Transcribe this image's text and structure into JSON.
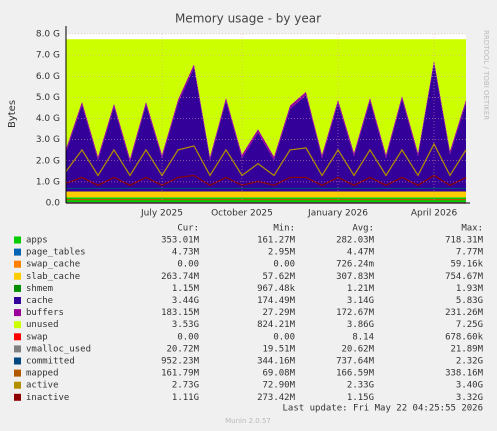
{
  "chart_data": {
    "type": "area",
    "title": "Memory usage - by year",
    "y_label": "Bytes",
    "side_text": "RRDTOOL / TOBI OETIKER",
    "categories": [
      null,
      null,
      null,
      null,
      null,
      null,
      "July 2025",
      null,
      null,
      null,
      null,
      "October 2025",
      null,
      null,
      null,
      null,
      null,
      "January 2026",
      null,
      null,
      null,
      null,
      null,
      "April 2026",
      null,
      null
    ],
    "ylim": [
      0,
      8589934592
    ],
    "yticks": [
      {
        "value": 0,
        "label": "0.0"
      },
      {
        "value": 1073741824,
        "label": "1.0 G"
      },
      {
        "value": 2147483648,
        "label": "2.0 G"
      },
      {
        "value": 3221225472,
        "label": "3.0 G"
      },
      {
        "value": 4294967296,
        "label": "4.0 G"
      },
      {
        "value": 5368709120,
        "label": "5.0 G"
      },
      {
        "value": 6442450944,
        "label": "6.0 G"
      },
      {
        "value": 7516192768,
        "label": "7.0 G"
      },
      {
        "value": 8589934592,
        "label": "8.0 G"
      }
    ],
    "grid": true,
    "series": [
      {
        "name": "apps",
        "color": "#00cc00",
        "stack": true,
        "values": [
          280000000.0,
          280000000.0,
          280000000.0,
          280000000.0,
          280000000.0,
          280000000.0,
          280000000.0,
          280000000.0,
          280000000.0,
          280000000.0,
          280000000.0,
          280000000.0,
          280000000.0,
          280000000.0,
          280000000.0,
          280000000.0,
          280000000.0,
          280000000.0,
          280000000.0,
          280000000.0,
          280000000.0,
          280000000.0,
          280000000.0,
          280000000.0,
          280000000.0,
          280000000.0
        ]
      },
      {
        "name": "page_tables",
        "color": "#0066b3",
        "stack": true,
        "values": [
          4500000.0,
          4500000.0,
          4500000.0,
          4500000.0,
          4500000.0,
          4500000.0,
          4500000.0,
          4500000.0,
          4500000.0,
          4500000.0,
          4500000.0,
          4500000.0,
          4500000.0,
          4500000.0,
          4500000.0,
          4500000.0,
          4500000.0,
          4500000.0,
          4500000.0,
          4500000.0,
          4500000.0,
          4500000.0,
          4500000.0,
          4500000.0,
          4500000.0,
          4500000.0
        ]
      },
      {
        "name": "swap_cache",
        "color": "#ff8000",
        "stack": true,
        "values": [
          0,
          0,
          0,
          0,
          0,
          0,
          0,
          0,
          0,
          0,
          0,
          0,
          0,
          0,
          0,
          0,
          0,
          0,
          0,
          0,
          0,
          0,
          0,
          0,
          0,
          0
        ]
      },
      {
        "name": "slab_cache",
        "color": "#ffcc00",
        "stack": true,
        "values": [
          300000000.0,
          300000000.0,
          300000000.0,
          300000000.0,
          300000000.0,
          300000000.0,
          300000000.0,
          300000000.0,
          300000000.0,
          300000000.0,
          300000000.0,
          300000000.0,
          300000000.0,
          300000000.0,
          300000000.0,
          300000000.0,
          300000000.0,
          300000000.0,
          300000000.0,
          300000000.0,
          300000000.0,
          300000000.0,
          300000000.0,
          300000000.0,
          300000000.0,
          300000000.0
        ]
      },
      {
        "name": "shmem",
        "color": "#008f00",
        "stack": true,
        "values": [
          1200000.0,
          1200000.0,
          1200000.0,
          1200000.0,
          1200000.0,
          1200000.0,
          1200000.0,
          1200000.0,
          1200000.0,
          1200000.0,
          1200000.0,
          1200000.0,
          1200000.0,
          1200000.0,
          1200000.0,
          1200000.0,
          1200000.0,
          1200000.0,
          1200000.0,
          1200000.0,
          1200000.0,
          1200000.0,
          1200000.0,
          1200000.0,
          1200000.0,
          1200000.0
        ]
      },
      {
        "name": "cache",
        "color": "#330099",
        "stack": true,
        "values": [
          2000000000.0,
          4400000000.0,
          1600000000.0,
          4300000000.0,
          1500000000.0,
          4400000000.0,
          1700000000.0,
          4500000000.0,
          6300000000.0,
          1600000000.0,
          4600000000.0,
          1700000000.0,
          3000000000.0,
          1600000000.0,
          4200000000.0,
          4900000000.0,
          1700000000.0,
          4500000000.0,
          1800000000.0,
          4600000000.0,
          1700000000.0,
          4700000000.0,
          1800000000.0,
          6500000000.0,
          1900000000.0,
          4500000000.0
        ]
      },
      {
        "name": "buffers",
        "color": "#990099",
        "stack": true,
        "values": [
          170000000.0,
          170000000.0,
          170000000.0,
          170000000.0,
          170000000.0,
          170000000.0,
          170000000.0,
          170000000.0,
          170000000.0,
          170000000.0,
          170000000.0,
          170000000.0,
          170000000.0,
          170000000.0,
          170000000.0,
          170000000.0,
          170000000.0,
          170000000.0,
          170000000.0,
          170000000.0,
          170000000.0,
          170000000.0,
          170000000.0,
          170000000.0,
          170000000.0,
          170000000.0
        ]
      },
      {
        "name": "unused",
        "color": "#ccff00",
        "stack": true,
        "values": [
          5570000000.0,
          3170000000.0,
          5970000000.0,
          3270000000.0,
          6070000000.0,
          3170000000.0,
          5870000000.0,
          3070000000.0,
          1270000000.0,
          5970000000.0,
          2970000000.0,
          5870000000.0,
          4570000000.0,
          5970000000.0,
          3370000000.0,
          2670000000.0,
          5870000000.0,
          3070000000.0,
          5770000000.0,
          2970000000.0,
          5870000000.0,
          2870000000.0,
          5770000000.0,
          1070000000.0,
          5670000000.0,
          3070000000.0
        ]
      },
      {
        "name": "swap",
        "color": "#ff0000",
        "values": [
          0,
          0,
          0,
          0,
          0,
          0,
          0,
          0,
          0,
          0,
          0,
          0,
          0,
          0,
          0,
          0,
          0,
          0,
          0,
          0,
          0,
          0,
          0,
          0,
          0,
          0
        ]
      },
      {
        "name": "vmalloc_used",
        "color": "#808080",
        "values": [
          20700000.0,
          20700000.0,
          20700000.0,
          20700000.0,
          20700000.0,
          20700000.0,
          20700000.0,
          20700000.0,
          20700000.0,
          20700000.0,
          20700000.0,
          20700000.0,
          20700000.0,
          20700000.0,
          20700000.0,
          20700000.0,
          20700000.0,
          20700000.0,
          20700000.0,
          20700000.0,
          20700000.0,
          20700000.0,
          20700000.0,
          20700000.0,
          20700000.0,
          20700000.0
        ]
      },
      {
        "name": "committed",
        "color": "#00487d",
        "values": [
          740000000.0,
          740000000.0,
          740000000.0,
          740000000.0,
          740000000.0,
          740000000.0,
          740000000.0,
          740000000.0,
          740000000.0,
          740000000.0,
          740000000.0,
          740000000.0,
          740000000.0,
          740000000.0,
          740000000.0,
          740000000.0,
          740000000.0,
          740000000.0,
          740000000.0,
          740000000.0,
          740000000.0,
          740000000.0,
          740000000.0,
          740000000.0,
          740000000.0,
          740000000.0
        ]
      },
      {
        "name": "mapped",
        "color": "#b35a00",
        "values": [
          170000000.0,
          170000000.0,
          170000000.0,
          170000000.0,
          170000000.0,
          170000000.0,
          170000000.0,
          170000000.0,
          170000000.0,
          170000000.0,
          170000000.0,
          170000000.0,
          170000000.0,
          170000000.0,
          170000000.0,
          170000000.0,
          170000000.0,
          170000000.0,
          170000000.0,
          170000000.0,
          170000000.0,
          170000000.0,
          170000000.0,
          170000000.0,
          170000000.0,
          170000000.0
        ]
      },
      {
        "name": "active",
        "color": "#b38f00",
        "values": [
          1600000000.0,
          2700000000.0,
          1400000000.0,
          2700000000.0,
          1400000000.0,
          2700000000.0,
          1400000000.0,
          2700000000.0,
          2900000000.0,
          1400000000.0,
          2700000000.0,
          1400000000.0,
          2000000000.0,
          1400000000.0,
          2700000000.0,
          2800000000.0,
          1400000000.0,
          2700000000.0,
          1400000000.0,
          2700000000.0,
          1400000000.0,
          2700000000.0,
          1400000000.0,
          3000000000.0,
          1400000000.0,
          2700000000.0
        ]
      },
      {
        "name": "inactive",
        "color": "#8f0000",
        "values": [
          1000000000.0,
          1300000000.0,
          900000000.0,
          1300000000.0,
          900000000.0,
          1300000000.0,
          900000000.0,
          1300000000.0,
          1400000000.0,
          900000000.0,
          1300000000.0,
          900000000.0,
          1100000000.0,
          900000000.0,
          1300000000.0,
          1300000000.0,
          900000000.0,
          1300000000.0,
          900000000.0,
          1300000000.0,
          900000000.0,
          1300000000.0,
          900000000.0,
          1400000000.0,
          900000000.0,
          1300000000.0
        ]
      }
    ],
    "legend_headers": [
      "Cur:",
      "Min:",
      "Avg:",
      "Max:"
    ],
    "legend_stats": [
      [
        "353.01M",
        "161.27M",
        "282.03M",
        "718.31M"
      ],
      [
        "4.73M",
        "2.95M",
        "4.47M",
        "7.77M"
      ],
      [
        "0.00",
        "0.00",
        "726.24m",
        "59.16k"
      ],
      [
        "263.74M",
        "57.62M",
        "307.83M",
        "754.67M"
      ],
      [
        "1.15M",
        "967.48k",
        "1.21M",
        "1.93M"
      ],
      [
        "3.44G",
        "174.49M",
        "3.14G",
        "5.83G"
      ],
      [
        "183.15M",
        "27.29M",
        "172.67M",
        "231.26M"
      ],
      [
        "3.53G",
        "824.21M",
        "3.86G",
        "7.25G"
      ],
      [
        "0.00",
        "0.00",
        "8.14",
        "678.60k"
      ],
      [
        "20.72M",
        "19.51M",
        "20.62M",
        "21.89M"
      ],
      [
        "952.23M",
        "344.16M",
        "737.64M",
        "2.32G"
      ],
      [
        "161.79M",
        "69.08M",
        "166.59M",
        "338.16M"
      ],
      [
        "2.73G",
        "72.90M",
        "2.33G",
        "3.40G"
      ],
      [
        "1.11G",
        "273.42M",
        "1.15G",
        "3.32G"
      ]
    ],
    "last_update": "Last update: Fri May 22 04:25:55 2026",
    "footer": "Munin 2.0.57"
  }
}
